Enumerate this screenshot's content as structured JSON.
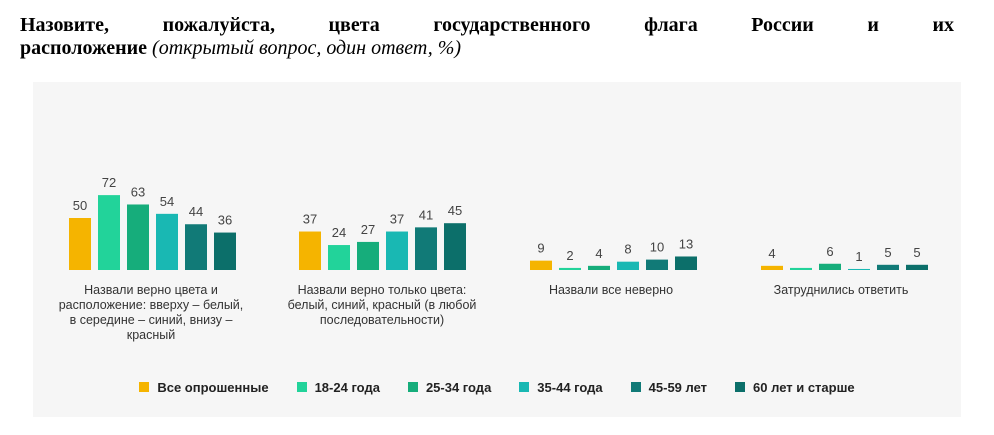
{
  "title": {
    "line1": "Назовите, пожалуйста, цвета государственного флага России и их",
    "line2_bold": "расположение",
    "line2_italic": "(открытый вопрос, один ответ, %)"
  },
  "chart_data": {
    "type": "bar",
    "title": "Назовите, пожалуйста, цвета государственного флага России и их расположение (открытый вопрос, один ответ, %)",
    "categories": [
      [
        "Назвали верно цвета и",
        "расположение: вверху – белый,",
        "в середине – синий, внизу –",
        "красный"
      ],
      [
        "Назвали верно только цвета:",
        "белый, синий, красный (в любой",
        "последовательности)"
      ],
      [
        "Назвали все неверно"
      ],
      [
        "Затруднились ответить"
      ]
    ],
    "series": [
      {
        "name": "Все опрошенные",
        "color": "#f5b400",
        "values": [
          50,
          37,
          9,
          4
        ]
      },
      {
        "name": "18-24 года",
        "color": "#22d39a",
        "values": [
          72,
          24,
          2,
          2
        ]
      },
      {
        "name": "25-34 года",
        "color": "#16ad7b",
        "values": [
          63,
          27,
          4,
          6
        ]
      },
      {
        "name": "35-44 года",
        "color": "#19b8b3",
        "values": [
          54,
          37,
          8,
          1
        ]
      },
      {
        "name": "45-59 лет",
        "color": "#117a77",
        "values": [
          44,
          41,
          10,
          5
        ]
      },
      {
        "name": "60 лет и старше",
        "color": "#0c6f6a",
        "values": [
          36,
          45,
          13,
          5
        ]
      }
    ],
    "value_labels": [
      [
        "50",
        "37",
        "9",
        "4"
      ],
      [
        "72",
        "24",
        "2",
        ""
      ],
      [
        "63",
        "27",
        "4",
        "6"
      ],
      [
        "54",
        "37",
        "8",
        "1"
      ],
      [
        "44",
        "41",
        "10",
        "5"
      ],
      [
        "36",
        "45",
        "13",
        "5"
      ]
    ],
    "ylim": [
      0,
      80
    ],
    "grid": false,
    "legend_position": "bottom"
  }
}
